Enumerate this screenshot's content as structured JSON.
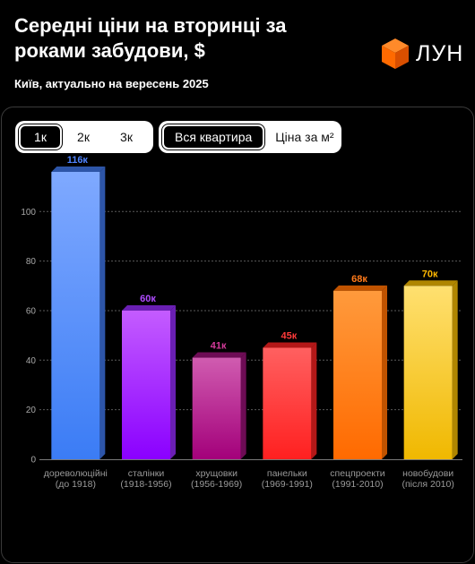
{
  "header": {
    "title": "Середні ціни на вторинці за роками забудови, $",
    "subtitle": "Київ, актуально на вересень 2025",
    "logo_text": "ЛУН"
  },
  "filters": {
    "rooms": [
      {
        "label": "1к",
        "active": true
      },
      {
        "label": "2к",
        "active": false
      },
      {
        "label": "3к",
        "active": false
      }
    ],
    "mode": [
      {
        "label": "Вся квартира",
        "active": true
      },
      {
        "label": "Ціна за м²",
        "active": false
      }
    ]
  },
  "colors": {
    "accent_logo": "#ff6a00",
    "bars": [
      {
        "top": "#7fa9ff",
        "bottom": "#3b7cf5",
        "side": "#2d55a8",
        "label": "#4f84ff"
      },
      {
        "top": "#c45cff",
        "bottom": "#8a00ff",
        "side": "#6a1fb3",
        "label": "#b04cff"
      },
      {
        "top": "#d05cb0",
        "bottom": "#a3007a",
        "side": "#6e0c55",
        "label": "#d43a9a"
      },
      {
        "top": "#ff6060",
        "bottom": "#ff2020",
        "side": "#b31818",
        "label": "#ff3a3a"
      },
      {
        "top": "#ff9a3c",
        "bottom": "#ff6a00",
        "side": "#c05300",
        "label": "#ff7a1a"
      },
      {
        "top": "#ffe070",
        "bottom": "#f0b800",
        "side": "#b08600",
        "label": "#ffb800"
      }
    ]
  },
  "chart_data": {
    "type": "bar",
    "title": "",
    "xlabel": "",
    "ylabel": "",
    "ylim": [
      0,
      116
    ],
    "yticks": [
      0,
      20,
      40,
      60,
      80,
      100
    ],
    "grid": true,
    "categories": [
      [
        "дореволюційні",
        "(до 1918)"
      ],
      [
        "сталінки",
        "(1918-1956)"
      ],
      [
        "хрущовки",
        "(1956-1969)"
      ],
      [
        "панельки",
        "(1969-1991)"
      ],
      [
        "спецпроекти",
        "(1991-2010)"
      ],
      [
        "новобудови",
        "(після 2010)"
      ]
    ],
    "values": [
      116,
      60,
      41,
      45,
      68,
      70
    ],
    "value_labels": [
      "116к",
      "60к",
      "41к",
      "45к",
      "68к",
      "70к"
    ]
  }
}
